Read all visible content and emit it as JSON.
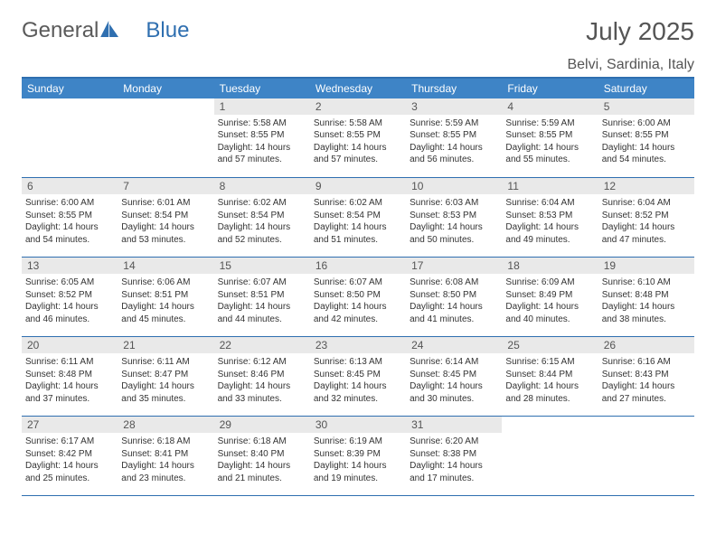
{
  "brand": {
    "part1": "General",
    "part2": "Blue"
  },
  "title": "July 2025",
  "location": "Belvi, Sardinia, Italy",
  "weekdays": [
    "Sunday",
    "Monday",
    "Tuesday",
    "Wednesday",
    "Thursday",
    "Friday",
    "Saturday"
  ],
  "colors": {
    "header_bar": "#3e84c6",
    "accent_line": "#2f6fb0",
    "daynum_bg": "#e9e9e9",
    "text_gray": "#555555",
    "body_text": "#333333",
    "white": "#ffffff"
  },
  "fonts": {
    "month_title_size": 28,
    "location_size": 16,
    "weekday_size": 12,
    "daynum_size": 12,
    "content_size": 10
  },
  "weeks": [
    [
      {
        "day": "",
        "sunrise": "",
        "sunset": "",
        "daylight": ""
      },
      {
        "day": "",
        "sunrise": "",
        "sunset": "",
        "daylight": ""
      },
      {
        "day": "1",
        "sunrise": "Sunrise: 5:58 AM",
        "sunset": "Sunset: 8:55 PM",
        "daylight": "Daylight: 14 hours and 57 minutes."
      },
      {
        "day": "2",
        "sunrise": "Sunrise: 5:58 AM",
        "sunset": "Sunset: 8:55 PM",
        "daylight": "Daylight: 14 hours and 57 minutes."
      },
      {
        "day": "3",
        "sunrise": "Sunrise: 5:59 AM",
        "sunset": "Sunset: 8:55 PM",
        "daylight": "Daylight: 14 hours and 56 minutes."
      },
      {
        "day": "4",
        "sunrise": "Sunrise: 5:59 AM",
        "sunset": "Sunset: 8:55 PM",
        "daylight": "Daylight: 14 hours and 55 minutes."
      },
      {
        "day": "5",
        "sunrise": "Sunrise: 6:00 AM",
        "sunset": "Sunset: 8:55 PM",
        "daylight": "Daylight: 14 hours and 54 minutes."
      }
    ],
    [
      {
        "day": "6",
        "sunrise": "Sunrise: 6:00 AM",
        "sunset": "Sunset: 8:55 PM",
        "daylight": "Daylight: 14 hours and 54 minutes."
      },
      {
        "day": "7",
        "sunrise": "Sunrise: 6:01 AM",
        "sunset": "Sunset: 8:54 PM",
        "daylight": "Daylight: 14 hours and 53 minutes."
      },
      {
        "day": "8",
        "sunrise": "Sunrise: 6:02 AM",
        "sunset": "Sunset: 8:54 PM",
        "daylight": "Daylight: 14 hours and 52 minutes."
      },
      {
        "day": "9",
        "sunrise": "Sunrise: 6:02 AM",
        "sunset": "Sunset: 8:54 PM",
        "daylight": "Daylight: 14 hours and 51 minutes."
      },
      {
        "day": "10",
        "sunrise": "Sunrise: 6:03 AM",
        "sunset": "Sunset: 8:53 PM",
        "daylight": "Daylight: 14 hours and 50 minutes."
      },
      {
        "day": "11",
        "sunrise": "Sunrise: 6:04 AM",
        "sunset": "Sunset: 8:53 PM",
        "daylight": "Daylight: 14 hours and 49 minutes."
      },
      {
        "day": "12",
        "sunrise": "Sunrise: 6:04 AM",
        "sunset": "Sunset: 8:52 PM",
        "daylight": "Daylight: 14 hours and 47 minutes."
      }
    ],
    [
      {
        "day": "13",
        "sunrise": "Sunrise: 6:05 AM",
        "sunset": "Sunset: 8:52 PM",
        "daylight": "Daylight: 14 hours and 46 minutes."
      },
      {
        "day": "14",
        "sunrise": "Sunrise: 6:06 AM",
        "sunset": "Sunset: 8:51 PM",
        "daylight": "Daylight: 14 hours and 45 minutes."
      },
      {
        "day": "15",
        "sunrise": "Sunrise: 6:07 AM",
        "sunset": "Sunset: 8:51 PM",
        "daylight": "Daylight: 14 hours and 44 minutes."
      },
      {
        "day": "16",
        "sunrise": "Sunrise: 6:07 AM",
        "sunset": "Sunset: 8:50 PM",
        "daylight": "Daylight: 14 hours and 42 minutes."
      },
      {
        "day": "17",
        "sunrise": "Sunrise: 6:08 AM",
        "sunset": "Sunset: 8:50 PM",
        "daylight": "Daylight: 14 hours and 41 minutes."
      },
      {
        "day": "18",
        "sunrise": "Sunrise: 6:09 AM",
        "sunset": "Sunset: 8:49 PM",
        "daylight": "Daylight: 14 hours and 40 minutes."
      },
      {
        "day": "19",
        "sunrise": "Sunrise: 6:10 AM",
        "sunset": "Sunset: 8:48 PM",
        "daylight": "Daylight: 14 hours and 38 minutes."
      }
    ],
    [
      {
        "day": "20",
        "sunrise": "Sunrise: 6:11 AM",
        "sunset": "Sunset: 8:48 PM",
        "daylight": "Daylight: 14 hours and 37 minutes."
      },
      {
        "day": "21",
        "sunrise": "Sunrise: 6:11 AM",
        "sunset": "Sunset: 8:47 PM",
        "daylight": "Daylight: 14 hours and 35 minutes."
      },
      {
        "day": "22",
        "sunrise": "Sunrise: 6:12 AM",
        "sunset": "Sunset: 8:46 PM",
        "daylight": "Daylight: 14 hours and 33 minutes."
      },
      {
        "day": "23",
        "sunrise": "Sunrise: 6:13 AM",
        "sunset": "Sunset: 8:45 PM",
        "daylight": "Daylight: 14 hours and 32 minutes."
      },
      {
        "day": "24",
        "sunrise": "Sunrise: 6:14 AM",
        "sunset": "Sunset: 8:45 PM",
        "daylight": "Daylight: 14 hours and 30 minutes."
      },
      {
        "day": "25",
        "sunrise": "Sunrise: 6:15 AM",
        "sunset": "Sunset: 8:44 PM",
        "daylight": "Daylight: 14 hours and 28 minutes."
      },
      {
        "day": "26",
        "sunrise": "Sunrise: 6:16 AM",
        "sunset": "Sunset: 8:43 PM",
        "daylight": "Daylight: 14 hours and 27 minutes."
      }
    ],
    [
      {
        "day": "27",
        "sunrise": "Sunrise: 6:17 AM",
        "sunset": "Sunset: 8:42 PM",
        "daylight": "Daylight: 14 hours and 25 minutes."
      },
      {
        "day": "28",
        "sunrise": "Sunrise: 6:18 AM",
        "sunset": "Sunset: 8:41 PM",
        "daylight": "Daylight: 14 hours and 23 minutes."
      },
      {
        "day": "29",
        "sunrise": "Sunrise: 6:18 AM",
        "sunset": "Sunset: 8:40 PM",
        "daylight": "Daylight: 14 hours and 21 minutes."
      },
      {
        "day": "30",
        "sunrise": "Sunrise: 6:19 AM",
        "sunset": "Sunset: 8:39 PM",
        "daylight": "Daylight: 14 hours and 19 minutes."
      },
      {
        "day": "31",
        "sunrise": "Sunrise: 6:20 AM",
        "sunset": "Sunset: 8:38 PM",
        "daylight": "Daylight: 14 hours and 17 minutes."
      },
      {
        "day": "",
        "sunrise": "",
        "sunset": "",
        "daylight": ""
      },
      {
        "day": "",
        "sunrise": "",
        "sunset": "",
        "daylight": ""
      }
    ]
  ]
}
